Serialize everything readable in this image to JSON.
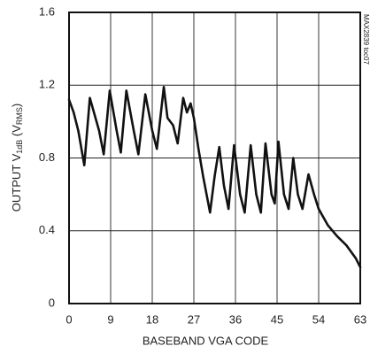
{
  "chart_data": {
    "type": "line",
    "ylabel_parts": [
      "OUTPUT V",
      "1dB",
      " (V",
      "RMS",
      ")"
    ],
    "xlabel": "BASEBAND VGA CODE",
    "annotation": "MAX2839 toc07",
    "x": [
      0,
      1,
      2,
      3.3,
      4.5,
      6.5,
      7.5,
      8.8,
      10.3,
      11.2,
      12.4,
      14,
      15,
      16.5,
      18,
      19,
      20.5,
      21.3,
      22.5,
      23.5,
      24.7,
      25.5,
      26.3,
      27,
      28,
      29,
      30.5,
      31.5,
      32.5,
      33.5,
      34.5,
      35.7,
      37,
      38,
      39.3,
      40.5,
      41.5,
      42.5,
      43.8,
      44.5,
      45.3,
      46.5,
      47.5,
      48.5,
      49.5,
      50.5,
      51.8,
      53,
      54,
      56,
      58,
      60,
      62,
      63
    ],
    "series": [
      {
        "color": "#111111",
        "values": [
          1.12,
          1.05,
          0.95,
          0.76,
          1.13,
          0.95,
          0.82,
          1.17,
          0.95,
          0.83,
          1.17,
          0.95,
          0.82,
          1.15,
          0.95,
          0.85,
          1.19,
          1.02,
          0.98,
          0.88,
          1.13,
          1.05,
          1.1,
          1.02,
          0.85,
          0.7,
          0.5,
          0.7,
          0.86,
          0.65,
          0.52,
          0.87,
          0.6,
          0.5,
          0.87,
          0.6,
          0.5,
          0.88,
          0.6,
          0.55,
          0.89,
          0.6,
          0.52,
          0.8,
          0.6,
          0.52,
          0.71,
          0.6,
          0.52,
          0.43,
          0.37,
          0.32,
          0.25,
          0.2
        ]
      }
    ],
    "xlim": [
      0,
      63
    ],
    "xticks": [
      0,
      9,
      18,
      27,
      36,
      45,
      54,
      63
    ],
    "ylim": [
      0,
      1.6
    ],
    "yticks": [
      0,
      0.4,
      0.8,
      1.2,
      1.6
    ],
    "grid": true
  }
}
